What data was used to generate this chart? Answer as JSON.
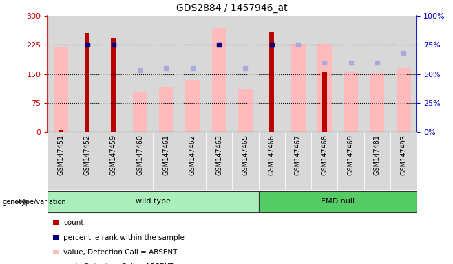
{
  "title": "GDS2884 / 1457946_at",
  "samples": [
    "GSM147451",
    "GSM147452",
    "GSM147459",
    "GSM147460",
    "GSM147461",
    "GSM147462",
    "GSM147463",
    "GSM147465",
    "GSM147466",
    "GSM147467",
    "GSM147468",
    "GSM147469",
    "GSM147481",
    "GSM147493"
  ],
  "n_wild": 8,
  "n_emd": 6,
  "red_bars": [
    5,
    255,
    243,
    0,
    0,
    0,
    0,
    0,
    258,
    0,
    155,
    0,
    0,
    0
  ],
  "pink_bars": [
    218,
    0,
    0,
    103,
    117,
    135,
    270,
    110,
    0,
    228,
    227,
    155,
    153,
    165
  ],
  "blue_dots": [
    null,
    75,
    75,
    null,
    null,
    null,
    75,
    null,
    75,
    null,
    null,
    null,
    null,
    null
  ],
  "lightblue_dots": [
    null,
    null,
    null,
    53,
    55,
    55,
    null,
    55,
    null,
    75,
    60,
    60,
    60,
    68
  ],
  "ylim_left": [
    0,
    300
  ],
  "ylim_right": [
    0,
    100
  ],
  "yticks_left": [
    0,
    75,
    150,
    225,
    300
  ],
  "yticks_right": [
    0,
    25,
    50,
    75,
    100
  ],
  "red_bar_color": "#bb0000",
  "pink_bar_color": "#ffbbbb",
  "blue_dot_color": "#000080",
  "lightblue_dot_color": "#aaaadd",
  "wild_type_color": "#aaeebb",
  "emd_null_color": "#55cc66",
  "col_bg_color": "#d8d8d8",
  "group_label": "genotype/variation",
  "wild_type_label": "wild type",
  "emd_null_label": "EMD null",
  "legend_items": [
    {
      "label": "count",
      "color": "#bb0000"
    },
    {
      "label": "percentile rank within the sample",
      "color": "#000080"
    },
    {
      "label": "value, Detection Call = ABSENT",
      "color": "#ffbbbb"
    },
    {
      "label": "rank, Detection Call = ABSENT",
      "color": "#aaaadd"
    }
  ],
  "left_axis_color": "#cc0000",
  "right_axis_color": "#0000cc",
  "hgrid_values": [
    75,
    150,
    225
  ]
}
